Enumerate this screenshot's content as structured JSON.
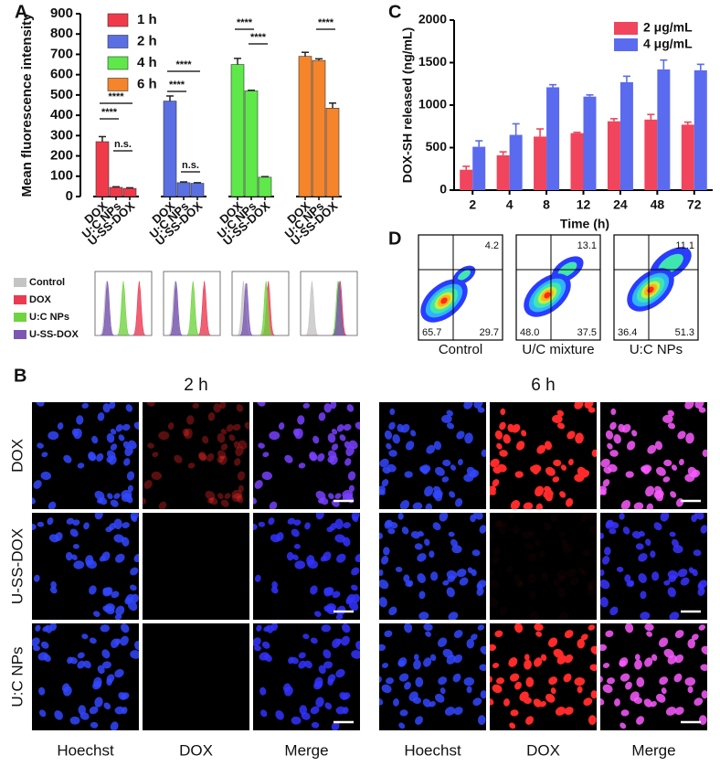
{
  "panel_labels": {
    "a": "A",
    "b": "B",
    "c": "C",
    "d": "D"
  },
  "chart_data": [
    {
      "type": "bar",
      "ylabel": "Mean fluorescence intensity",
      "categories": [
        "DOX",
        "U:C NPs",
        "U-SS-DOX"
      ],
      "series": [
        {
          "name": "1 h",
          "color": "#f03a4a",
          "values": [
            270,
            45,
            40
          ],
          "errors": [
            25,
            3,
            3
          ]
        },
        {
          "name": "2 h",
          "color": "#5a6fe2",
          "values": [
            470,
            68,
            65
          ],
          "errors": [
            25,
            4,
            3
          ]
        },
        {
          "name": "4 h",
          "color": "#5ee84a",
          "values": [
            650,
            520,
            95
          ],
          "errors": [
            30,
            3,
            3
          ]
        },
        {
          "name": "6 h",
          "color": "#f5842b",
          "values": [
            690,
            670,
            435
          ],
          "errors": [
            20,
            8,
            25
          ]
        }
      ],
      "ylim": [
        0,
        900
      ],
      "yticks": [
        0,
        100,
        200,
        300,
        400,
        500,
        600,
        700,
        800,
        900
      ],
      "legend_position": "upper left",
      "annotations": [
        "****",
        "****",
        "n.s.",
        "****",
        "****",
        "n.s.",
        "****",
        "****",
        "****"
      ]
    },
    {
      "type": "bar",
      "ylabel": "DOX-SH released (ng/mL)",
      "xlabel": "Time (h)",
      "categories": [
        "2",
        "4",
        "8",
        "12",
        "24",
        "48",
        "72"
      ],
      "series": [
        {
          "name": "2 μg/mL",
          "color": "#f0455c",
          "values": [
            240,
            410,
            630,
            670,
            810,
            830,
            770
          ],
          "errors": [
            40,
            40,
            90,
            10,
            30,
            60,
            30
          ]
        },
        {
          "name": "4 μg/mL",
          "color": "#5a6bef",
          "values": [
            510,
            650,
            1210,
            1100,
            1270,
            1420,
            1410
          ],
          "errors": [
            70,
            130,
            30,
            20,
            70,
            110,
            70
          ]
        }
      ],
      "ylim": [
        0,
        2000
      ],
      "yticks": [
        0,
        500,
        1000,
        1500,
        2000
      ],
      "legend_position": "upper right"
    },
    {
      "type": "flow",
      "panels": [
        {
          "name": "Control",
          "values": [
            4.2,
            65.7,
            29.7
          ],
          "value_labels": [
            "4.2",
            "65.7",
            "29.7"
          ]
        },
        {
          "name": "U/C mixture",
          "values": [
            13.1,
            48.0,
            37.5
          ],
          "value_labels": [
            "13.1",
            "48.0",
            "37.5"
          ]
        },
        {
          "name": "U:C NPs",
          "values": [
            11.1,
            36.4,
            51.3
          ],
          "value_labels": [
            "11.1",
            "36.4",
            "51.3"
          ]
        }
      ]
    }
  ],
  "flow_histograms": {
    "legend": [
      {
        "name": "Control",
        "color": "#c4c4c4"
      },
      {
        "name": "DOX",
        "color": "#ea3a52"
      },
      {
        "name": "U:C NPs",
        "color": "#6fd43f"
      },
      {
        "name": "U-SS-DOX",
        "color": "#7b57b3"
      }
    ]
  },
  "microscopy": {
    "timepoints": [
      "2 h",
      "6 h"
    ],
    "rows": [
      "DOX",
      "U-SS-DOX",
      "U:C NPs"
    ],
    "columns": [
      "Hoechst",
      "DOX",
      "Merge"
    ]
  }
}
